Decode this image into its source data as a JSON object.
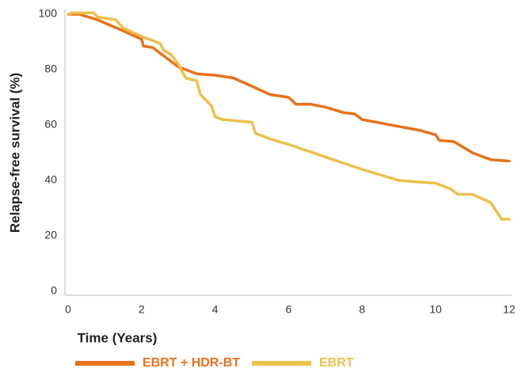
{
  "chart_data": {
    "type": "line",
    "xlabel": "Time (Years)",
    "ylabel": "Relapse-free survival (%)",
    "xlim": [
      0,
      12
    ],
    "xticks": [
      0,
      2,
      4,
      6,
      8,
      10,
      12
    ],
    "ylim": [
      0,
      100
    ],
    "yticks": [
      0,
      20,
      40,
      60,
      80,
      100
    ],
    "grid": false,
    "legend": "bottom",
    "series": [
      {
        "name": "EBRT + HDR-BT",
        "color": "#e8711a",
        "x": [
          0,
          0.3,
          0.8,
          1.5,
          2,
          2.05,
          2.3,
          2.6,
          3,
          3.5,
          4,
          4.5,
          5,
          5.5,
          6,
          6.2,
          6.6,
          7,
          7.5,
          7.8,
          8,
          9,
          9.6,
          10,
          10.1,
          10.5,
          11,
          11.5,
          12
        ],
        "values": [
          100,
          100,
          98,
          94,
          91,
          88.5,
          88,
          85,
          81,
          78.5,
          78,
          77,
          74,
          71,
          70,
          67.5,
          67.5,
          66.5,
          64.5,
          64,
          62,
          59.5,
          58,
          56.5,
          54.5,
          54,
          50,
          47.5,
          47
        ]
      },
      {
        "name": "EBRT",
        "color": "#ecc04a",
        "x": [
          0,
          0.1,
          0.7,
          0.8,
          1.3,
          1.5,
          2,
          2.5,
          2.6,
          2.8,
          3,
          3.2,
          3.5,
          3.6,
          3.9,
          4,
          4.2,
          5,
          5.1,
          5.5,
          6,
          7,
          8,
          9,
          10,
          10.4,
          10.6,
          11,
          11.5,
          11.8,
          12
        ],
        "values": [
          100,
          100.5,
          100.5,
          99,
          98,
          95,
          92,
          89.5,
          87,
          85.5,
          82,
          77,
          76,
          71,
          67,
          63,
          62,
          61,
          57,
          55,
          53,
          48.5,
          44,
          40,
          39,
          37,
          35,
          35,
          32,
          26,
          26
        ]
      }
    ]
  }
}
